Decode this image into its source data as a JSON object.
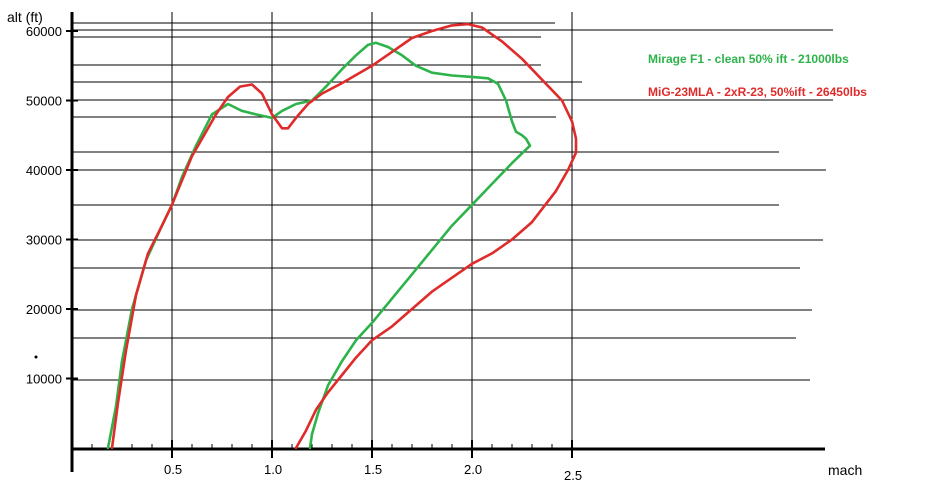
{
  "chart_data": {
    "type": "line",
    "ylabel": "alt (ft)",
    "xlabel": "mach",
    "xlim": [
      -0.5,
      3.8
    ],
    "ylim": [
      0,
      61500
    ],
    "x_ticks": [
      {
        "value": 0.5,
        "label": "0.5"
      },
      {
        "value": 1.0,
        "label": "1.0"
      },
      {
        "value": 1.5,
        "label": "1.5"
      },
      {
        "value": 2.0,
        "label": "2.0"
      },
      {
        "value": 2.5,
        "label": "2.5"
      }
    ],
    "y_ticks": [
      {
        "value": 10000,
        "label": "10000"
      },
      {
        "value": 20000,
        "label": "20000"
      },
      {
        "value": 30000,
        "label": "30000"
      },
      {
        "value": 40000,
        "label": "40000"
      },
      {
        "value": 50000,
        "label": "50000"
      },
      {
        "value": 60000,
        "label": "60000"
      }
    ],
    "grid": true,
    "series": [
      {
        "name": "Mirage F1 - clean 50% ift - 21000lbs",
        "color": "#2db34a",
        "x": [
          0.18,
          0.22,
          0.25,
          0.3,
          0.37,
          0.45,
          0.5,
          0.55,
          0.62,
          0.7,
          0.78,
          0.85,
          0.92,
          1.0,
          1.05,
          1.12,
          1.2,
          1.27,
          1.35,
          1.42,
          1.48,
          1.52,
          1.58,
          1.65,
          1.72,
          1.8,
          1.9,
          2.0,
          2.08,
          2.13,
          2.17,
          2.2,
          2.22,
          2.25,
          2.27,
          2.29,
          2.2,
          2.1,
          2.0,
          1.9,
          1.8,
          1.7,
          1.6,
          1.5,
          1.42,
          1.35,
          1.28,
          1.23,
          1.2,
          1.19
        ],
        "y": [
          0,
          6000,
          12500,
          20000,
          27000,
          32000,
          35000,
          39000,
          43500,
          48000,
          49500,
          48500,
          48000,
          47500,
          48500,
          49500,
          50000,
          52000,
          54500,
          56500,
          58000,
          58300,
          57700,
          56500,
          55000,
          54000,
          53600,
          53400,
          53200,
          52400,
          50000,
          47000,
          45500,
          45000,
          44500,
          43500,
          41000,
          38000,
          35000,
          32000,
          28500,
          25000,
          21500,
          18000,
          15500,
          12500,
          9000,
          5000,
          2000,
          0
        ]
      },
      {
        "name": "MiG-23MLA - 2xR-23, 50%ift - 26450lbs",
        "color": "#e02b2b",
        "x": [
          0.2,
          0.23,
          0.27,
          0.32,
          0.38,
          0.45,
          0.5,
          0.55,
          0.6,
          0.66,
          0.72,
          0.78,
          0.84,
          0.9,
          0.95,
          1.0,
          1.05,
          1.08,
          1.12,
          1.18,
          1.25,
          1.35,
          1.5,
          1.6,
          1.7,
          1.8,
          1.9,
          1.98,
          2.05,
          2.15,
          2.25,
          2.35,
          2.45,
          2.5,
          2.52,
          2.52,
          2.48,
          2.42,
          2.3,
          2.2,
          2.1,
          2.0,
          1.9,
          1.8,
          1.7,
          1.6,
          1.5,
          1.42,
          1.35,
          1.28,
          1.22,
          1.17,
          1.12
        ],
        "y": [
          0,
          6500,
          14000,
          22000,
          28000,
          32000,
          35000,
          38500,
          42000,
          45000,
          48000,
          50500,
          52000,
          52300,
          51000,
          48000,
          46000,
          46000,
          47500,
          49500,
          51000,
          52500,
          55000,
          57000,
          59000,
          60000,
          60800,
          61000,
          60500,
          58500,
          56000,
          53000,
          50000,
          47000,
          44500,
          42500,
          40000,
          37000,
          32500,
          30000,
          28000,
          26500,
          24500,
          22500,
          20000,
          17500,
          15500,
          13000,
          10500,
          8000,
          5500,
          2500,
          0
        ]
      }
    ],
    "legend_placement": "top-right"
  }
}
